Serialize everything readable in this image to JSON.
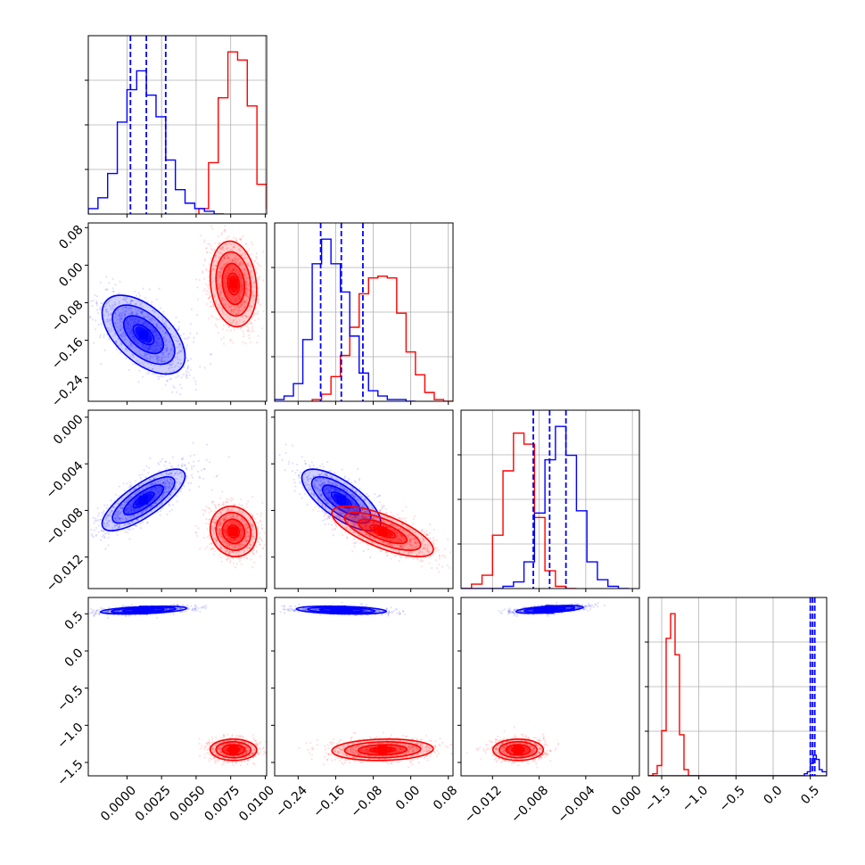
{
  "chart_data": {
    "type": "corner",
    "parameters": 4,
    "colors": {
      "blue": "#0000ff",
      "red": "#ff0000",
      "grid": "#b0b0b0",
      "axes": "#000000"
    },
    "axes": [
      {
        "lim": [
          -0.0028,
          0.0101
        ],
        "ticks": [
          0.0,
          0.0025,
          0.005,
          0.0075,
          0.01
        ],
        "tick_labels": [
          "0.0000",
          "0.0025",
          "0.0050",
          "0.0075",
          "0.0100"
        ]
      },
      {
        "lim": [
          -0.29,
          0.09
        ],
        "ticks": [
          -0.24,
          -0.16,
          -0.08,
          0.0,
          0.08
        ],
        "tick_labels": [
          "−0.24",
          "−0.16",
          "−0.08",
          "0.00",
          "0.08"
        ]
      },
      {
        "lim": [
          -0.0147,
          0.0006
        ],
        "ticks": [
          -0.012,
          -0.008,
          -0.004,
          0.0
        ],
        "tick_labels": [
          "−0.012",
          "−0.008",
          "−0.004",
          "0.000"
        ]
      },
      {
        "lim": [
          -1.68,
          0.72
        ],
        "ticks": [
          -1.5,
          -1.0,
          -0.5,
          0.0,
          0.5
        ],
        "tick_labels": [
          "−1.5",
          "−1.0",
          "−0.5",
          "0.0",
          "0.5"
        ]
      }
    ],
    "y_tick_labels": {
      "1": [
        "−0.24",
        "−0.16",
        "−0.08",
        "0.00",
        "0.08"
      ],
      "2": [
        "−0.012",
        "−0.008",
        "−0.004",
        "0.000"
      ],
      "3": [
        "−1.5",
        "−1.0",
        "−0.5",
        "0.0",
        "0.5"
      ]
    },
    "series": [
      {
        "color": "#0000ff",
        "quantiles": [
          [
            0.00025,
            0.0014,
            0.0028
          ],
          [
            -0.192,
            -0.148,
            -0.102
          ],
          [
            -0.0085,
            -0.0071,
            -0.0057
          ],
          [
            0.5,
            0.53,
            0.56
          ]
        ],
        "histograms": [
          {
            "edges": [
              -0.0028,
              -0.0021,
              -0.0014,
              -0.0007,
              0.0,
              0.0007,
              0.0014,
              0.0021,
              0.0028,
              0.0035,
              0.0042,
              0.0049,
              0.0056,
              0.0063,
              0.007
            ],
            "counts": [
              2,
              6,
              15,
              34,
              46,
              53,
              44,
              36,
              20,
              9,
              4,
              2,
              1,
              0
            ]
          },
          {
            "edges": [
              -0.29,
              -0.27,
              -0.25,
              -0.23,
              -0.21,
              -0.19,
              -0.17,
              -0.15,
              -0.13,
              -0.11,
              -0.09,
              -0.07,
              -0.05,
              -0.03,
              -0.01,
              0.01
            ],
            "counts": [
              1,
              3,
              10,
              35,
              78,
              92,
              78,
              62,
              37,
              16,
              6,
              3,
              1,
              1,
              0
            ]
          },
          {
            "edges": [
              -0.0147,
              -0.0138,
              -0.0129,
              -0.012,
              -0.0111,
              -0.0102,
              -0.0093,
              -0.0084,
              -0.0075,
              -0.0066,
              -0.0057,
              -0.0048,
              -0.0039,
              -0.003,
              -0.0021,
              -0.0012,
              -0.0003
            ],
            "counts": [
              0,
              0,
              0,
              0,
              1,
              3,
              12,
              34,
              58,
              73,
              60,
              35,
              12,
              4,
              1,
              0
            ]
          },
          {
            "edges": [
              -1.68,
              0.38,
              0.42,
              0.46,
              0.5,
              0.54,
              0.58,
              0.62,
              0.66,
              0.72
            ],
            "counts": [
              0,
              0,
              1,
              2,
              6,
              10,
              8,
              3,
              2
            ]
          }
        ],
        "pairs": [
          {
            "x": 0,
            "y": 1,
            "cx": 0.0012,
            "cy": -0.148,
            "sx": 0.00125,
            "sy": 0.035,
            "rho": -0.55,
            "n": 1100,
            "box": [
              -0.0028,
              0.009,
              -0.28,
              -0.02
            ]
          },
          {
            "x": 0,
            "y": 2,
            "cx": 0.0012,
            "cy": -0.0071,
            "sx": 0.00125,
            "sy": 0.0011,
            "rho": 0.78,
            "n": 1100,
            "box": [
              -0.0028,
              0.009,
              -0.0135,
              -0.0015
            ]
          },
          {
            "x": 1,
            "y": 2,
            "cx": -0.148,
            "cy": -0.0071,
            "sx": 0.035,
            "sy": 0.0011,
            "rho": -0.72,
            "n": 1100,
            "box": [
              -0.29,
              0.09,
              -0.0135,
              -0.0015
            ]
          },
          {
            "x": 0,
            "y": 3,
            "cx": 0.0012,
            "cy": 0.55,
            "sx": 0.0013,
            "sy": 0.022,
            "rho": 0.45,
            "n": 900,
            "box": [
              -0.0028,
              0.006,
              0.42,
              0.68
            ]
          },
          {
            "x": 1,
            "y": 3,
            "cx": -0.148,
            "cy": 0.55,
            "sx": 0.04,
            "sy": 0.022,
            "rho": -0.3,
            "n": 900,
            "box": [
              -0.29,
              0.09,
              0.42,
              0.68
            ]
          },
          {
            "x": 2,
            "y": 3,
            "cx": -0.0071,
            "cy": 0.56,
            "sx": 0.0012,
            "sy": 0.022,
            "rho": 0.55,
            "n": 900,
            "box": [
              -0.0147,
              0.0006,
              0.42,
              0.68
            ]
          }
        ]
      },
      {
        "color": "#ff0000",
        "quantiles": null,
        "histograms": [
          {
            "edges": [
              0.0052,
              0.0059,
              0.0066,
              0.0073,
              0.008,
              0.0087,
              0.0094,
              0.0101,
              0.0108
            ],
            "counts": [
              2,
              19,
              43,
              60,
              57,
              40,
              11,
              2
            ]
          },
          {
            "edges": [
              -0.21,
              -0.19,
              -0.17,
              -0.15,
              -0.13,
              -0.11,
              -0.09,
              -0.07,
              -0.05,
              -0.03,
              -0.01,
              0.01,
              0.03,
              0.05,
              0.07,
              0.09
            ],
            "counts": [
              1,
              4,
              14,
              26,
              42,
              61,
              70,
              71,
              70,
              50,
              28,
              15,
              5,
              1,
              0
            ]
          },
          {
            "edges": [
              -0.0147,
              -0.0138,
              -0.0129,
              -0.012,
              -0.0111,
              -0.0102,
              -0.0093,
              -0.0084,
              -0.0075,
              -0.0066,
              -0.0057,
              -0.0048
            ],
            "counts": [
              0,
              2,
              6,
              24,
              53,
              70,
              65,
              32,
              8,
              1,
              0
            ]
          },
          {
            "edges": [
              -1.68,
              -1.62,
              -1.56,
              -1.5,
              -1.44,
              -1.38,
              -1.32,
              -1.26,
              -1.2,
              -1.14,
              -1.08,
              0.72
            ],
            "counts": [
              0,
              1,
              5,
              22,
              67,
              79,
              59,
              20,
              3,
              0,
              0
            ]
          }
        ],
        "pairs": [
          {
            "x": 0,
            "y": 1,
            "cx": 0.0077,
            "cy": -0.04,
            "sx": 0.0007,
            "sy": 0.038,
            "rho": -0.15,
            "n": 1100,
            "box": [
              0.0045,
              0.0101,
              -0.21,
              0.09
            ]
          },
          {
            "x": 0,
            "y": 2,
            "cx": 0.0077,
            "cy": -0.0098,
            "sx": 0.0007,
            "sy": 0.0009,
            "rho": -0.1,
            "n": 1100,
            "box": [
              0.0045,
              0.0101,
              -0.0147,
              -0.005
            ]
          },
          {
            "x": 1,
            "y": 2,
            "cx": -0.06,
            "cy": -0.0098,
            "sx": 0.045,
            "sy": 0.0009,
            "rho": -0.72,
            "n": 1100,
            "box": [
              -0.21,
              0.09,
              -0.0147,
              -0.005
            ]
          },
          {
            "x": 0,
            "y": 3,
            "cx": 0.0077,
            "cy": -1.33,
            "sx": 0.0007,
            "sy": 0.06,
            "rho": 0.0,
            "n": 1000,
            "box": [
              0.0045,
              0.0101,
              -1.68,
              -1.0
            ]
          },
          {
            "x": 1,
            "y": 3,
            "cx": -0.06,
            "cy": -1.33,
            "sx": 0.045,
            "sy": 0.06,
            "rho": 0.1,
            "n": 1000,
            "box": [
              -0.25,
              0.09,
              -1.68,
              -1.0
            ]
          },
          {
            "x": 2,
            "y": 3,
            "cx": -0.0098,
            "cy": -1.33,
            "sx": 0.0009,
            "sy": 0.06,
            "rho": 0.0,
            "n": 1000,
            "box": [
              -0.0147,
              0.0006,
              -1.68,
              -1.0
            ]
          }
        ]
      }
    ],
    "grid": true,
    "legend": "none"
  }
}
